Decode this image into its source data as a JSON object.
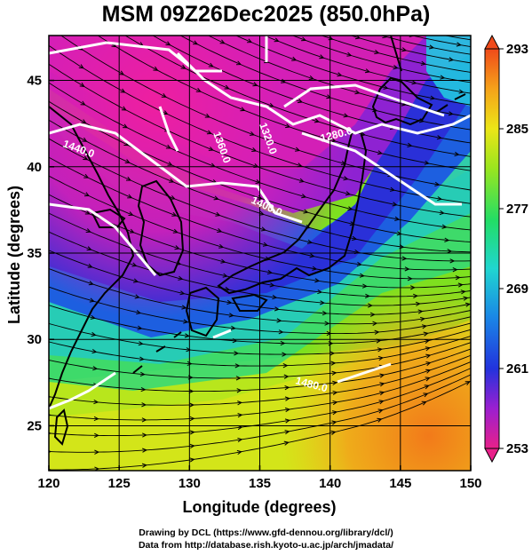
{
  "title": "MSM 09Z26Dec2025 (850.0hPa)",
  "x_axis": {
    "label": "Longitude (degrees)",
    "range": [
      120,
      150
    ],
    "ticks": [
      "120",
      "125",
      "130",
      "135",
      "140",
      "145",
      "150"
    ]
  },
  "y_axis": {
    "label": "Latitude  (degrees)",
    "range": [
      22.4,
      47.6
    ],
    "ticks": [
      "25",
      "30",
      "35",
      "40",
      "45"
    ]
  },
  "colorbar": {
    "ticks": [
      "293",
      "285",
      "277",
      "269",
      "261",
      "253"
    ],
    "range": [
      253,
      293
    ],
    "colors": [
      "#e8208a",
      "#9b1fd0",
      "#2233dd",
      "#1a88e6",
      "#20d6d0",
      "#22dd66",
      "#99e61f",
      "#ece617",
      "#f5a21a",
      "#f04a1a"
    ]
  },
  "contour_labels": [
    "1440.0",
    "1360.0",
    "1320.0",
    "1280.0",
    "1400.0",
    "1480.0"
  ],
  "credits": [
    "Drawing by DCL (https://www.gfd-dennou.org/library/dcl/)",
    "Data from http://database.rish.kyoto-u.ac.jp/arch/jmadata/"
  ]
}
